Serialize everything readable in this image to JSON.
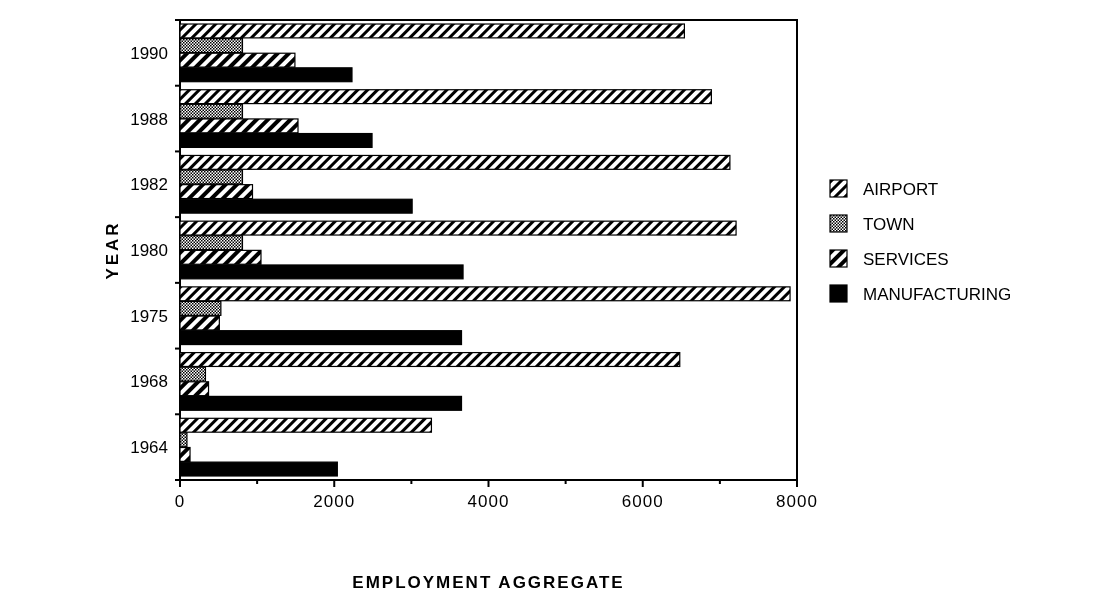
{
  "chart_data": {
    "type": "bar",
    "orientation": "horizontal",
    "xlabel": "EMPLOYMENT AGGREGATE",
    "ylabel": "YEAR",
    "categories": [
      "1990",
      "1988",
      "1982",
      "1980",
      "1975",
      "1968",
      "1964"
    ],
    "series": [
      {
        "name": "AIRPORT",
        "color": "#000000",
        "values": [
          6540,
          6890,
          7130,
          7210,
          7910,
          6480,
          3260
        ]
      },
      {
        "name": "TOWN",
        "color": "#000000",
        "values": [
          810,
          810,
          810,
          810,
          530,
          330,
          90
        ]
      },
      {
        "name": "SERVICES",
        "color": "#000000",
        "values": [
          1490,
          1530,
          940,
          1050,
          510,
          370,
          130
        ]
      },
      {
        "name": "MANUFACTURING",
        "color": "#000000",
        "values": [
          2230,
          2490,
          3010,
          3670,
          3650,
          3650,
          2040
        ]
      }
    ],
    "xlim": [
      0,
      8000
    ],
    "xticks": [
      0,
      {
        "value": 1000,
        "label": null
      },
      2000,
      {
        "value": 3000,
        "label": null
      },
      4000,
      {
        "value": 5000,
        "label": null
      },
      6000,
      {
        "value": 7000,
        "label": null
      },
      8000
    ],
    "legend": "right",
    "grid": false
  }
}
